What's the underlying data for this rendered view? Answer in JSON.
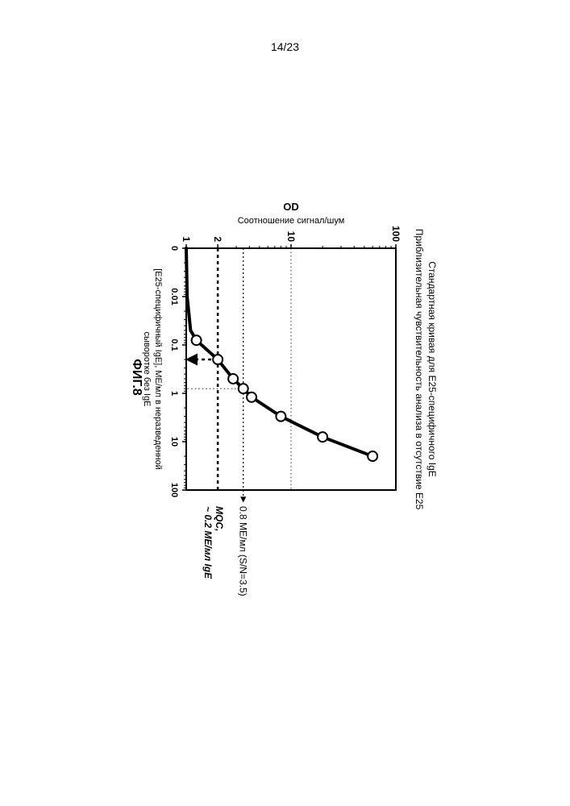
{
  "page_number": "14/23",
  "figure_label": "ФИГ.8",
  "titles": {
    "line1": "Стандартная кривая для E25-специфичного IgE",
    "line2": "Приблизительная чувствительность анализа в отсутствие E25"
  },
  "axes": {
    "y": {
      "label_line1": "OD",
      "label_line2": "Cоотношение сигнал/шум",
      "scale": "log",
      "ticks": [
        "1",
        "2",
        "10",
        "100"
      ],
      "tick_values": [
        1,
        2,
        10,
        100
      ],
      "range": [
        1,
        100
      ],
      "fontsize": 12,
      "bold": true
    },
    "x": {
      "label_line1": "[E25-специфичный IgE], МЕ/мл в неразведенной",
      "label_line2": "сыворотке без IgE",
      "scale": "log",
      "ticks": [
        "0",
        "0.01",
        "0.1",
        "1",
        "10",
        "100"
      ],
      "tick_values": [
        0.001,
        0.01,
        0.1,
        1,
        10,
        100
      ],
      "range": [
        0.001,
        100
      ],
      "fontsize": 11,
      "bold": true
    }
  },
  "annotations": {
    "sn_line": {
      "text": "0.8 МЕ/мл (S/N=3.5)",
      "y_value": 3.5,
      "x_value": 0.8,
      "fontsize": 12
    },
    "mqc": {
      "text1": "MQC,",
      "text2": "~ 0.2 МЕ/мл IgE",
      "x_value": 0.2,
      "y_value": 2,
      "fontsize": 12
    }
  },
  "series": {
    "type": "line+scatter",
    "marker": "circle",
    "marker_fill": "#ffffff",
    "marker_stroke": "#000000",
    "marker_size": 6,
    "line_color": "#000000",
    "line_width": 4,
    "x": [
      0.001,
      0.01,
      0.05,
      0.08,
      0.2,
      0.5,
      0.8,
      1.2,
      3.0,
      8.0,
      20.0
    ],
    "y": [
      1.0,
      1.02,
      1.1,
      1.25,
      2.0,
      2.8,
      3.5,
      4.2,
      8.0,
      20.0,
      60.0
    ]
  },
  "style": {
    "bg": "#ffffff",
    "axis_color": "#000000",
    "grid_color": "#000000",
    "tick_len": 5,
    "chart_inner_w": 300,
    "chart_inner_h": 260,
    "title_fontsize": 12,
    "axis_label_fontsize": 12
  }
}
